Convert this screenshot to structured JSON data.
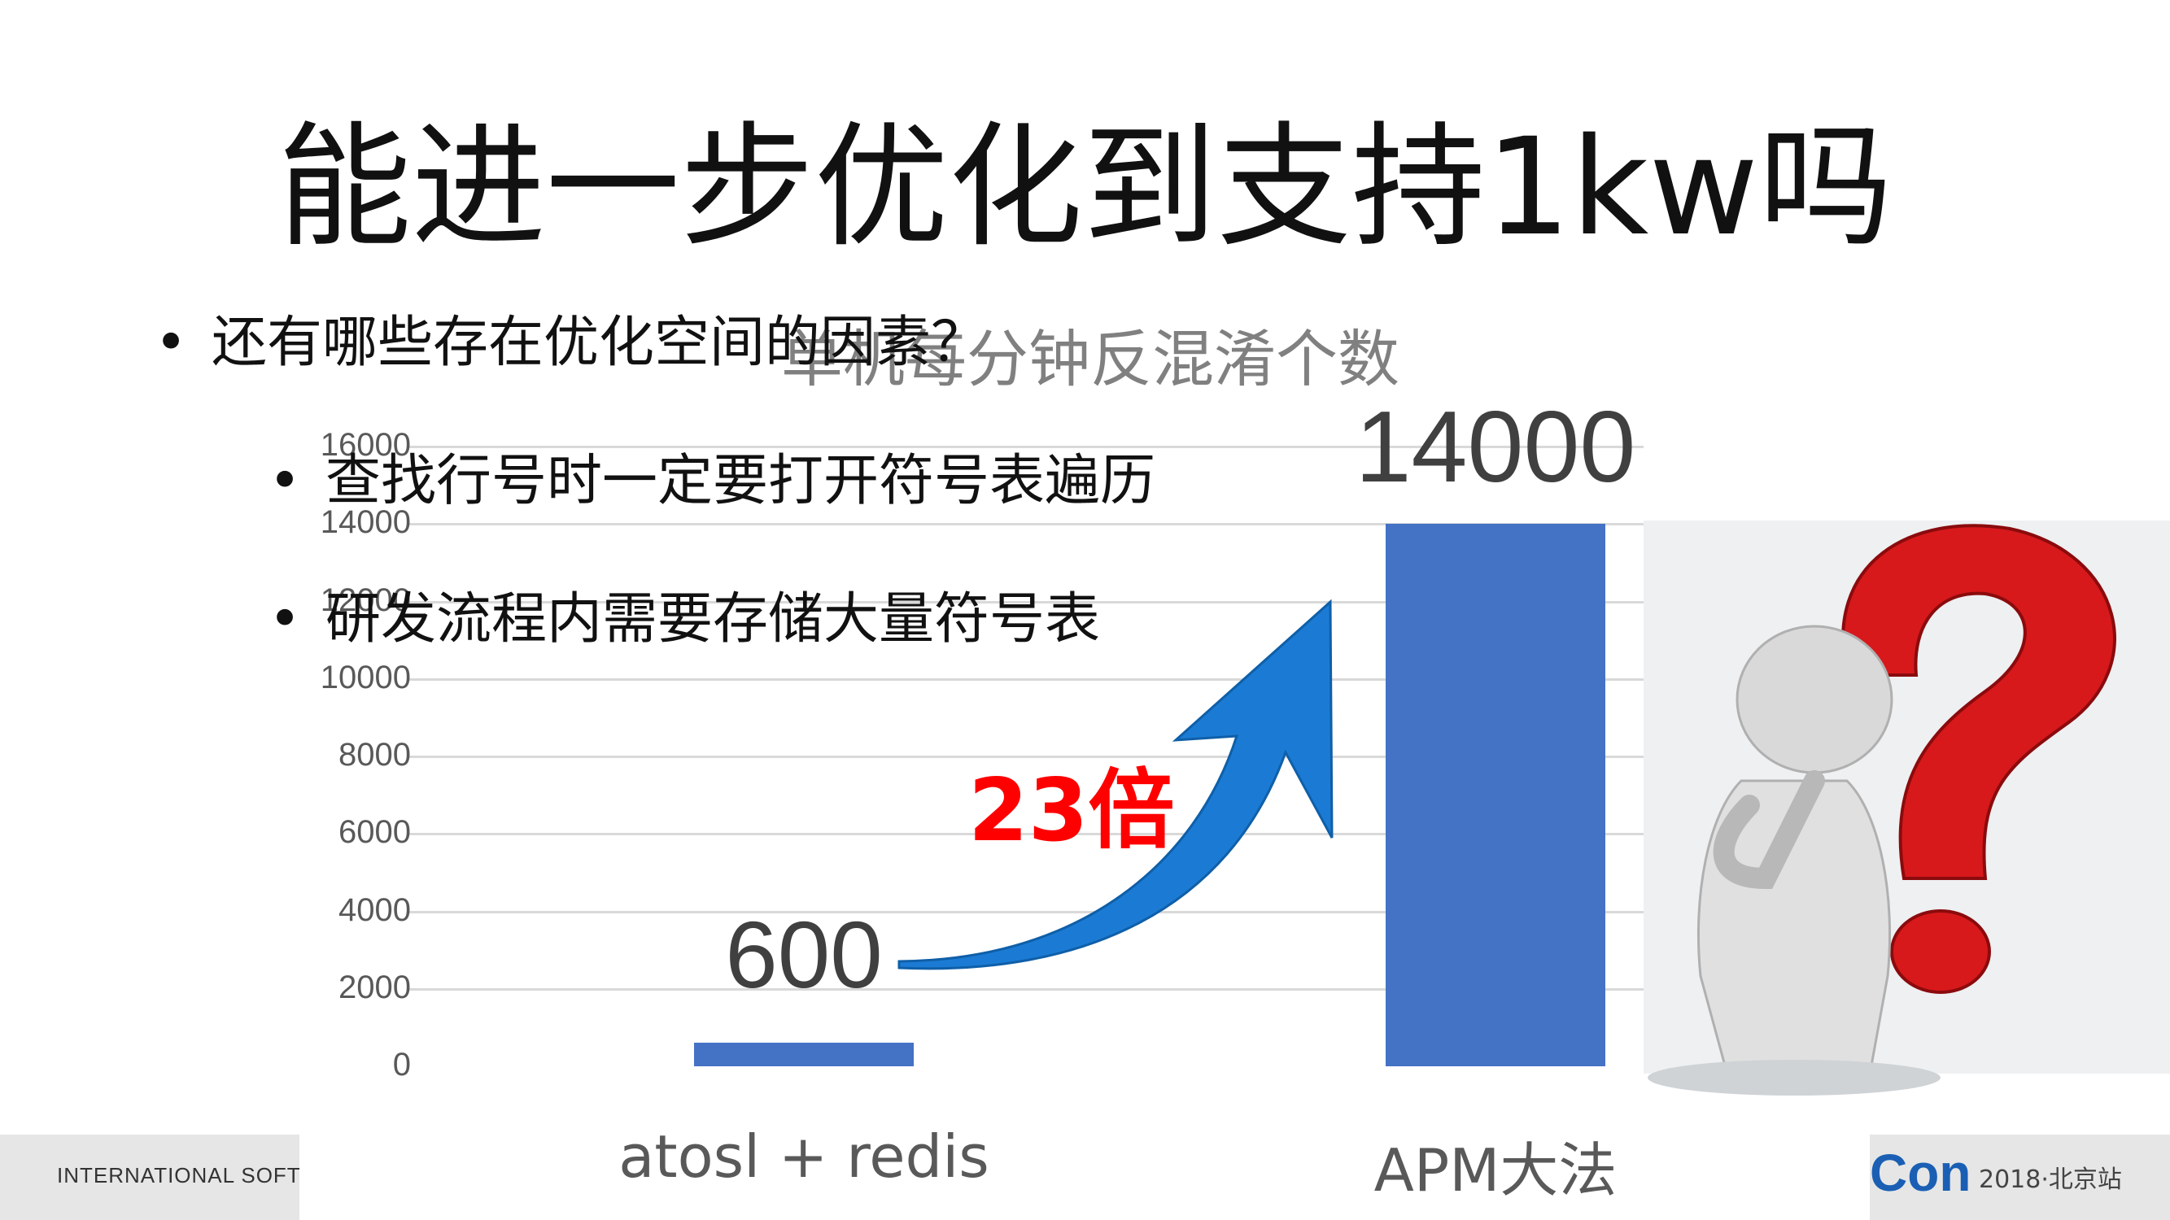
{
  "slide": {
    "title": "能进一步优化到支持1kw吗",
    "bullets": [
      {
        "text": "还有哪些存在优化空间的因素？"
      },
      {
        "text": "查找行号时一定要打开符号表遍历"
      },
      {
        "text": "研发流程内需要存储大量符号表"
      }
    ]
  },
  "chart_data": {
    "type": "bar",
    "title": "单机每分钟反混淆个数",
    "categories": [
      "atosl + redis",
      "APM大法"
    ],
    "values": [
      600,
      14000
    ],
    "data_labels": [
      "600",
      "14000"
    ],
    "yticks": [
      "0",
      "2000",
      "4000",
      "6000",
      "8000",
      "10000",
      "12000",
      "14000",
      "16000"
    ],
    "ylim": [
      0,
      16000
    ],
    "grid": true,
    "legend": "none",
    "bar_color": "#4472c4"
  },
  "annotation": {
    "multiplier": "23倍",
    "color": "#ff0000",
    "arrow_color": "#1b7bd4"
  },
  "footer": {
    "left_text": "INTERNATIONAL SOFTWAR",
    "brand": "Con",
    "event": "2018·北京站"
  },
  "illustration": {
    "icon": "thinking-figure-question-mark-icon",
    "question_color": "#d7191c"
  }
}
